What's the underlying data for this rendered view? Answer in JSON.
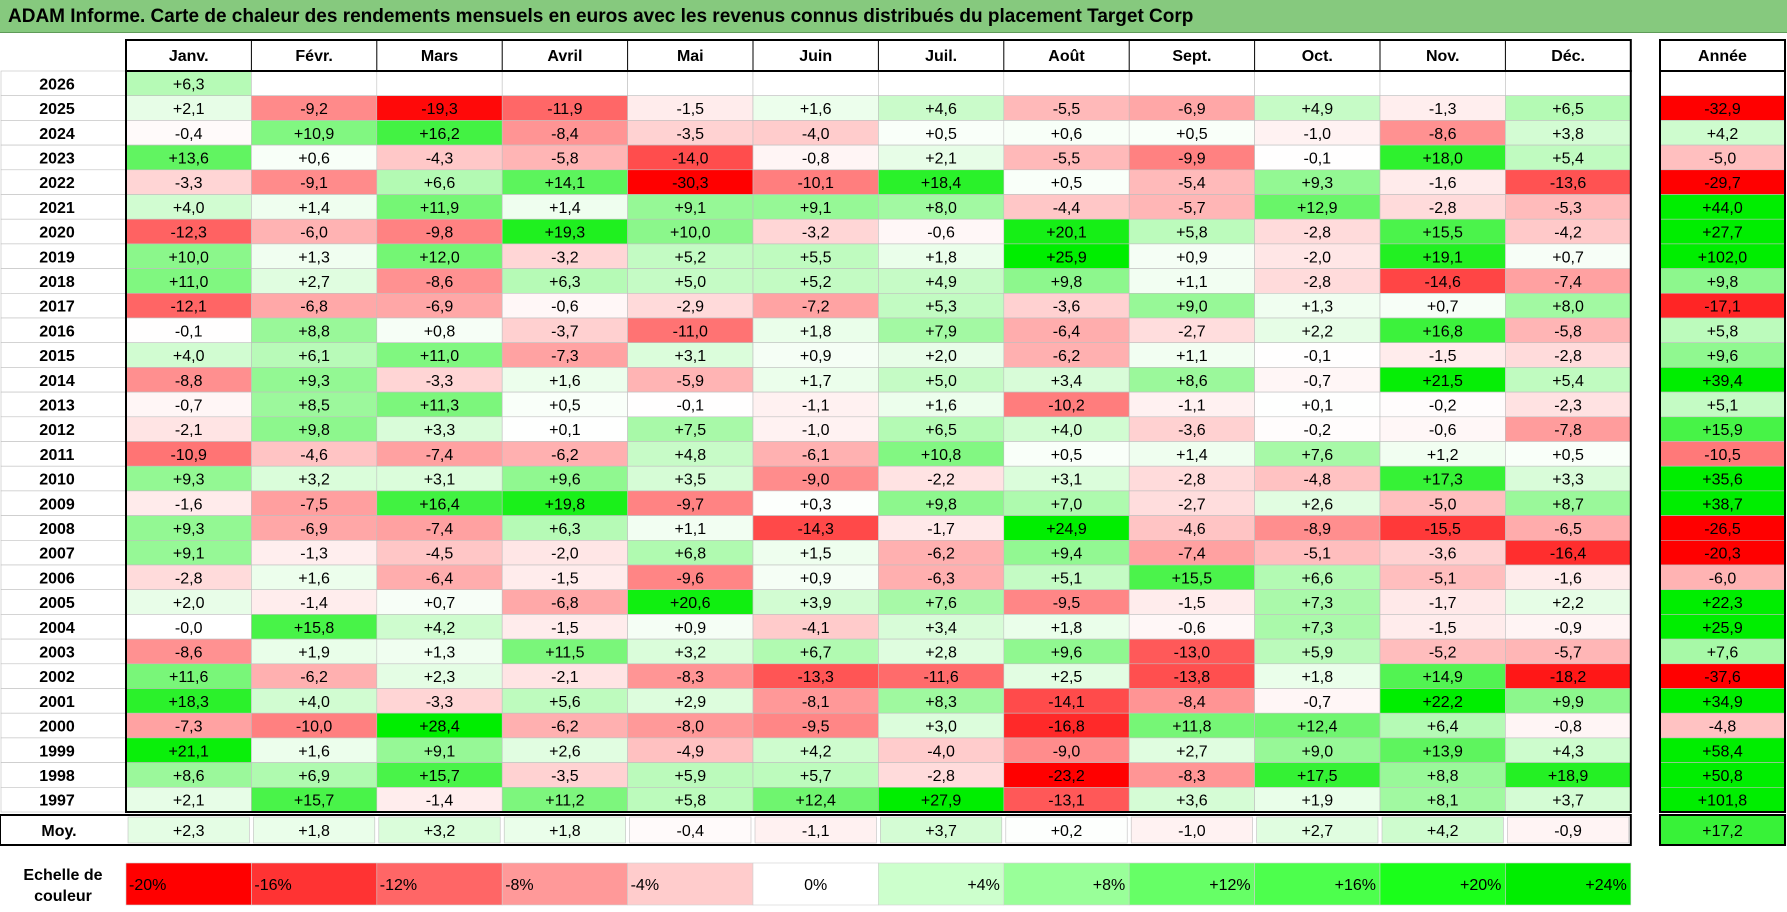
{
  "title": "ADAM Informe. Carte de chaleur des rendements mensuels en euros avec les revenus connus distribués du placement Target Corp",
  "chart_data": {
    "type": "heatmap",
    "title": "ADAM Informe. Carte de chaleur des rendements mensuels en euros avec les revenus connus distribués du placement Target Corp",
    "columns": [
      "Janv.",
      "Févr.",
      "Mars",
      "Avril",
      "Mai",
      "Juin",
      "Juil.",
      "Août",
      "Sept.",
      "Oct.",
      "Nov.",
      "Déc."
    ],
    "year_header": "Année",
    "rows": [
      {
        "year": "2026",
        "months": [
          "+6,3",
          "",
          "",
          "",
          "",
          "",
          "",
          "",
          "",
          "",
          "",
          ""
        ],
        "annual": ""
      },
      {
        "year": "2025",
        "months": [
          "+2,1",
          "-9,2",
          "-19,3",
          "-11,9",
          "-1,5",
          "+1,6",
          "+4,6",
          "-5,5",
          "-6,9",
          "+4,9",
          "-1,3",
          "+6,5"
        ],
        "annual": "-32,9"
      },
      {
        "year": "2024",
        "months": [
          "-0,4",
          "+10,9",
          "+16,2",
          "-8,4",
          "-3,5",
          "-4,0",
          "+0,5",
          "+0,6",
          "+0,5",
          "-1,0",
          "-8,6",
          "+3,8"
        ],
        "annual": "+4,2"
      },
      {
        "year": "2023",
        "months": [
          "+13,6",
          "+0,6",
          "-4,3",
          "-5,8",
          "-14,0",
          "-0,8",
          "+2,1",
          "-5,5",
          "-9,9",
          "-0,1",
          "+18,0",
          "+5,4"
        ],
        "annual": "-5,0"
      },
      {
        "year": "2022",
        "months": [
          "-3,3",
          "-9,1",
          "+6,6",
          "+14,1",
          "-30,3",
          "-10,1",
          "+18,4",
          "+0,5",
          "-5,4",
          "+9,3",
          "-1,6",
          "-13,6"
        ],
        "annual": "-29,7"
      },
      {
        "year": "2021",
        "months": [
          "+4,0",
          "+1,4",
          "+11,9",
          "+1,4",
          "+9,1",
          "+9,1",
          "+8,0",
          "-4,4",
          "-5,7",
          "+12,9",
          "-2,8",
          "-5,3"
        ],
        "annual": "+44,0"
      },
      {
        "year": "2020",
        "months": [
          "-12,3",
          "-6,0",
          "-9,8",
          "+19,3",
          "+10,0",
          "-3,2",
          "-0,6",
          "+20,1",
          "+5,8",
          "-2,8",
          "+15,5",
          "-4,2"
        ],
        "annual": "+27,7"
      },
      {
        "year": "2019",
        "months": [
          "+10,0",
          "+1,3",
          "+12,0",
          "-3,2",
          "+5,2",
          "+5,5",
          "+1,8",
          "+25,9",
          "+0,9",
          "-2,0",
          "+19,1",
          "+0,7"
        ],
        "annual": "+102,0"
      },
      {
        "year": "2018",
        "months": [
          "+11,0",
          "+2,7",
          "-8,6",
          "+6,3",
          "+5,0",
          "+5,2",
          "+4,9",
          "+9,8",
          "+1,1",
          "-2,8",
          "-14,6",
          "-7,4"
        ],
        "annual": "+9,8"
      },
      {
        "year": "2017",
        "months": [
          "-12,1",
          "-6,8",
          "-6,9",
          "-0,6",
          "-2,9",
          "-7,2",
          "+5,3",
          "-3,6",
          "+9,0",
          "+1,3",
          "+0,7",
          "+8,0"
        ],
        "annual": "-17,1"
      },
      {
        "year": "2016",
        "months": [
          "-0,1",
          "+8,8",
          "+0,8",
          "-3,7",
          "-11,0",
          "+1,8",
          "+7,9",
          "-6,4",
          "-2,7",
          "+2,2",
          "+16,8",
          "-5,8"
        ],
        "annual": "+5,8"
      },
      {
        "year": "2015",
        "months": [
          "+4,0",
          "+6,1",
          "+11,0",
          "-7,3",
          "+3,1",
          "+0,9",
          "+2,0",
          "-6,2",
          "+1,1",
          "-0,1",
          "-1,5",
          "-2,8"
        ],
        "annual": "+9,6"
      },
      {
        "year": "2014",
        "months": [
          "-8,8",
          "+9,3",
          "-3,3",
          "+1,6",
          "-5,9",
          "+1,7",
          "+5,0",
          "+3,4",
          "+8,6",
          "-0,7",
          "+21,5",
          "+5,4"
        ],
        "annual": "+39,4"
      },
      {
        "year": "2013",
        "months": [
          "-0,7",
          "+8,5",
          "+11,3",
          "+0,5",
          "-0,1",
          "-1,1",
          "+1,6",
          "-10,2",
          "-1,1",
          "+0,1",
          "-0,2",
          "-2,3"
        ],
        "annual": "+5,1"
      },
      {
        "year": "2012",
        "months": [
          "-2,1",
          "+9,8",
          "+3,3",
          "+0,1",
          "+7,5",
          "-1,0",
          "+6,5",
          "+4,0",
          "-3,6",
          "-0,2",
          "-0,6",
          "-7,8"
        ],
        "annual": "+15,9"
      },
      {
        "year": "2011",
        "months": [
          "-10,9",
          "-4,6",
          "-7,4",
          "-6,2",
          "+4,8",
          "-6,1",
          "+10,8",
          "+0,5",
          "+1,4",
          "+7,6",
          "+1,2",
          "+0,5"
        ],
        "annual": "-10,5"
      },
      {
        "year": "2010",
        "months": [
          "+9,3",
          "+3,2",
          "+3,1",
          "+9,6",
          "+3,5",
          "-9,0",
          "-2,2",
          "+3,1",
          "-2,8",
          "-4,8",
          "+17,3",
          "+3,3"
        ],
        "annual": "+35,6"
      },
      {
        "year": "2009",
        "months": [
          "-1,6",
          "-7,5",
          "+16,4",
          "+19,8",
          "-9,7",
          "+0,3",
          "+9,8",
          "+7,0",
          "-2,7",
          "+2,6",
          "-5,0",
          "+8,7"
        ],
        "annual": "+38,7"
      },
      {
        "year": "2008",
        "months": [
          "+9,3",
          "-6,9",
          "-7,4",
          "+6,3",
          "+1,1",
          "-14,3",
          "-1,7",
          "+24,9",
          "-4,6",
          "-8,9",
          "-15,5",
          "-6,5"
        ],
        "annual": "-26,5"
      },
      {
        "year": "2007",
        "months": [
          "+9,1",
          "-1,3",
          "-4,5",
          "-2,0",
          "+6,8",
          "+1,5",
          "-6,2",
          "+9,4",
          "-7,4",
          "-5,1",
          "-3,6",
          "-16,4"
        ],
        "annual": "-20,3"
      },
      {
        "year": "2006",
        "months": [
          "-2,8",
          "+1,6",
          "-6,4",
          "-1,5",
          "-9,6",
          "+0,9",
          "-6,3",
          "+5,1",
          "+15,5",
          "+6,6",
          "-5,1",
          "-1,6"
        ],
        "annual": "-6,0"
      },
      {
        "year": "2005",
        "months": [
          "+2,0",
          "-1,4",
          "+0,7",
          "-6,8",
          "+20,6",
          "+3,9",
          "+7,6",
          "-9,5",
          "-1,5",
          "+7,3",
          "-1,7",
          "+2,2"
        ],
        "annual": "+22,3"
      },
      {
        "year": "2004",
        "months": [
          "-0,0",
          "+15,8",
          "+4,2",
          "-1,5",
          "+0,9",
          "-4,1",
          "+3,4",
          "+1,8",
          "-0,6",
          "+7,3",
          "-1,5",
          "-0,9"
        ],
        "annual": "+25,9"
      },
      {
        "year": "2003",
        "months": [
          "-8,6",
          "+1,9",
          "+1,3",
          "+11,5",
          "+3,2",
          "+6,7",
          "+2,8",
          "+9,6",
          "-13,0",
          "+5,9",
          "-5,2",
          "-5,7"
        ],
        "annual": "+7,6"
      },
      {
        "year": "2002",
        "months": [
          "+11,6",
          "-6,2",
          "+2,3",
          "-2,1",
          "-8,3",
          "-13,3",
          "-11,6",
          "+2,5",
          "-13,8",
          "+1,8",
          "+14,9",
          "-18,2"
        ],
        "annual": "-37,6"
      },
      {
        "year": "2001",
        "months": [
          "+18,3",
          "+4,0",
          "-3,3",
          "+5,6",
          "+2,9",
          "-8,1",
          "+8,3",
          "-14,1",
          "-8,4",
          "-0,7",
          "+22,2",
          "+9,9"
        ],
        "annual": "+34,9"
      },
      {
        "year": "2000",
        "months": [
          "-7,3",
          "-10,0",
          "+28,4",
          "-6,2",
          "-8,0",
          "-9,5",
          "+3,0",
          "-16,8",
          "+11,8",
          "+12,4",
          "+6,4",
          "-0,8"
        ],
        "annual": "-4,8"
      },
      {
        "year": "1999",
        "months": [
          "+21,1",
          "+1,6",
          "+9,1",
          "+2,6",
          "-4,9",
          "+4,2",
          "-4,0",
          "-9,0",
          "+2,7",
          "+9,0",
          "+13,9",
          "+4,3"
        ],
        "annual": "+58,4"
      },
      {
        "year": "1998",
        "months": [
          "+8,6",
          "+6,9",
          "+15,7",
          "-3,5",
          "+5,9",
          "+5,7",
          "-2,8",
          "-23,2",
          "-8,3",
          "+17,5",
          "+8,8",
          "+18,9"
        ],
        "annual": "+50,8"
      },
      {
        "year": "1997",
        "months": [
          "+2,1",
          "+15,7",
          "-1,4",
          "+11,2",
          "+5,8",
          "+12,4",
          "+27,9",
          "-13,1",
          "+3,6",
          "+1,9",
          "+8,1",
          "+3,7"
        ],
        "annual": "+101,8"
      }
    ],
    "average": {
      "label": "Moy.",
      "months": [
        "+2,3",
        "+1,8",
        "+3,2",
        "+1,8",
        "-0,4",
        "-1,1",
        "+3,7",
        "+0,2",
        "-1,0",
        "+2,7",
        "+4,2",
        "-0,9"
      ],
      "annual": "+17,2"
    },
    "scale": {
      "label_line1": "Echelle de",
      "label_line2": "couleur",
      "steps": [
        {
          "label": "-20%",
          "value": -20,
          "color": "#ff0000"
        },
        {
          "label": "-16%",
          "value": -16,
          "color": "#ff3333"
        },
        {
          "label": "-12%",
          "value": -12,
          "color": "#ff6666"
        },
        {
          "label": "-8%",
          "value": -8,
          "color": "#ff9999"
        },
        {
          "label": "-4%",
          "value": -4,
          "color": "#ffcccc"
        },
        {
          "label": "0%",
          "value": 0,
          "color": "#ffffff"
        },
        {
          "label": "+4%",
          "value": 4,
          "color": "#ccffcc"
        },
        {
          "label": "+8%",
          "value": 8,
          "color": "#99ff99"
        },
        {
          "label": "+12%",
          "value": 12,
          "color": "#66ff66"
        },
        {
          "label": "+16%",
          "value": 16,
          "color": "#4dff4d"
        },
        {
          "label": "+20%",
          "value": 20,
          "color": "#1aff1a"
        },
        {
          "label": "+24%",
          "value": 24,
          "color": "#00ee00"
        }
      ]
    }
  }
}
